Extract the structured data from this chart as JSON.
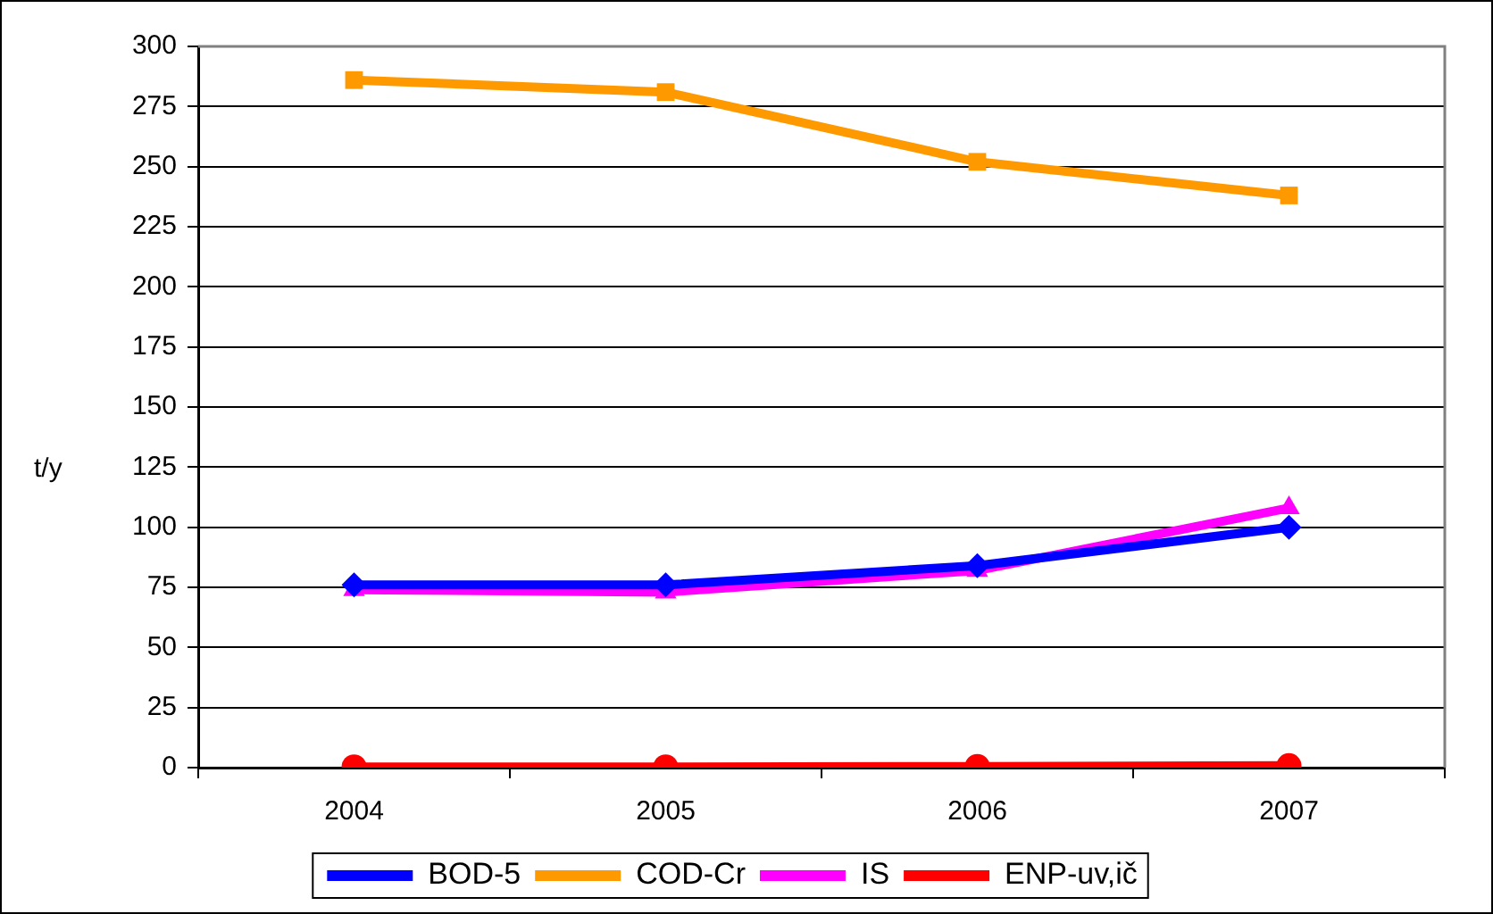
{
  "chart_data": {
    "type": "line",
    "ylabel": "t/y",
    "categories": [
      "2004",
      "2005",
      "2006",
      "2007"
    ],
    "series": [
      {
        "name": "BOD-5",
        "color": "#0000ff",
        "marker": "diamond",
        "values": [
          76,
          76,
          84,
          100
        ]
      },
      {
        "name": "COD-Cr",
        "color": "#ff9900",
        "marker": "square",
        "values": [
          286,
          281,
          252,
          238
        ]
      },
      {
        "name": "IS",
        "color": "#ff00ff",
        "marker": "triangle",
        "values": [
          74,
          73,
          82,
          108
        ]
      },
      {
        "name": "ENP-uv,ič",
        "color": "#ff0000",
        "marker": "circle",
        "values": [
          0.3,
          0.3,
          0.5,
          0.8
        ]
      }
    ],
    "ylim": [
      0,
      300
    ],
    "yticks": [
      0,
      25,
      50,
      75,
      100,
      125,
      150,
      175,
      200,
      225,
      250,
      275,
      300
    ],
    "grid": "y",
    "legend": "bottom",
    "line_style": "solid"
  }
}
